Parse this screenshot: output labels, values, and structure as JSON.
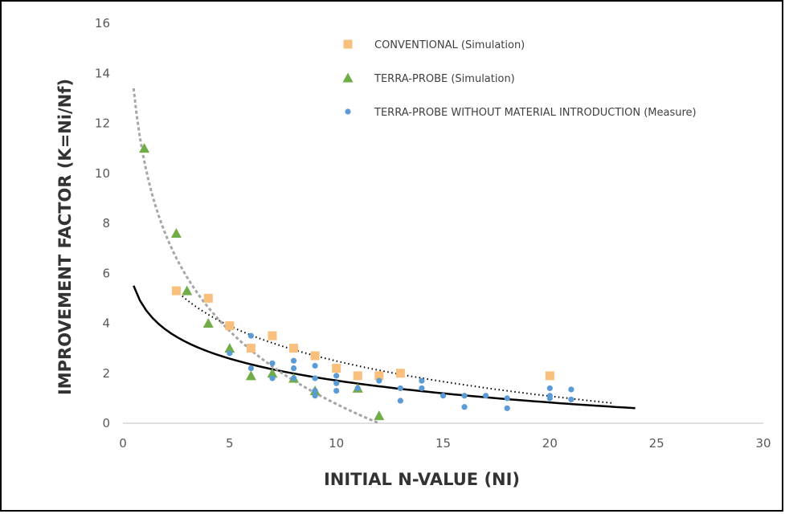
{
  "chart_data": {
    "type": "scatter",
    "xlabel": "INITIAL N-VALUE (NI)",
    "ylabel": "IMPROVEMENT FACTOR (K=Ni/Nf)",
    "xlim": [
      0,
      30
    ],
    "ylim": [
      0,
      16
    ],
    "x_ticks": [
      0,
      5,
      10,
      15,
      20,
      25,
      30
    ],
    "y_ticks": [
      0,
      2,
      4,
      6,
      8,
      10,
      12,
      14,
      16
    ],
    "grid": false,
    "legend_position": "top-right",
    "series": [
      {
        "name": "CONVENTIONAL (Simulation)",
        "marker": "square",
        "color": "#F9BF7D",
        "points": [
          [
            2.5,
            5.3
          ],
          [
            4,
            5.0
          ],
          [
            5,
            3.9
          ],
          [
            6,
            3.0
          ],
          [
            7,
            3.5
          ],
          [
            8,
            3.0
          ],
          [
            9,
            2.7
          ],
          [
            10,
            2.2
          ],
          [
            11,
            1.9
          ],
          [
            12,
            1.9
          ],
          [
            13,
            2.0
          ],
          [
            20,
            1.9
          ]
        ]
      },
      {
        "name": "TERRA-PROBE (Simulation)",
        "marker": "triangle",
        "color": "#70AD47",
        "points": [
          [
            1,
            11.0
          ],
          [
            2.5,
            7.6
          ],
          [
            3,
            5.3
          ],
          [
            4,
            4.0
          ],
          [
            5,
            3.0
          ],
          [
            6,
            1.9
          ],
          [
            7,
            2.0
          ],
          [
            8,
            1.8
          ],
          [
            9,
            1.3
          ],
          [
            11,
            1.4
          ],
          [
            12,
            0.3
          ]
        ]
      },
      {
        "name": "TERRA-PROBE WITHOUT MATERIAL INTRODUCTION (Measure)",
        "marker": "circle",
        "color": "#5B9BD5",
        "points": [
          [
            5,
            2.8
          ],
          [
            6,
            3.5
          ],
          [
            6,
            2.2
          ],
          [
            7,
            2.4
          ],
          [
            7,
            1.8
          ],
          [
            8,
            2.5
          ],
          [
            8,
            2.2
          ],
          [
            8,
            1.8
          ],
          [
            9,
            2.3
          ],
          [
            9,
            1.8
          ],
          [
            9,
            1.3
          ],
          [
            9,
            1.1
          ],
          [
            10,
            1.9
          ],
          [
            10,
            1.6
          ],
          [
            10,
            1.3
          ],
          [
            11,
            1.4
          ],
          [
            12,
            1.7
          ],
          [
            13,
            1.4
          ],
          [
            13,
            0.9
          ],
          [
            14,
            1.7
          ],
          [
            14,
            1.4
          ],
          [
            15,
            1.1
          ],
          [
            16,
            1.1
          ],
          [
            16,
            0.65
          ],
          [
            17,
            1.1
          ],
          [
            18,
            1.0
          ],
          [
            18,
            0.6
          ],
          [
            20,
            1.4
          ],
          [
            20,
            1.1
          ],
          [
            20,
            1.0
          ],
          [
            21,
            1.35
          ],
          [
            21,
            0.95
          ]
        ]
      }
    ],
    "trendlines": [
      {
        "kind": "solid",
        "color": "#000000",
        "from_x": 0.5,
        "to_x": 24,
        "start_y": 5.5,
        "end_y": 0.6
      },
      {
        "kind": "dotted",
        "color": "#000000",
        "from_x": 2.5,
        "to_x": 23,
        "start_y": 5.3,
        "end_y": 0.8
      },
      {
        "kind": "dashed",
        "color": "#A6A6A6",
        "from_x": 0.5,
        "to_x": 12,
        "start_y": 13.4,
        "end_y": 0
      }
    ]
  }
}
